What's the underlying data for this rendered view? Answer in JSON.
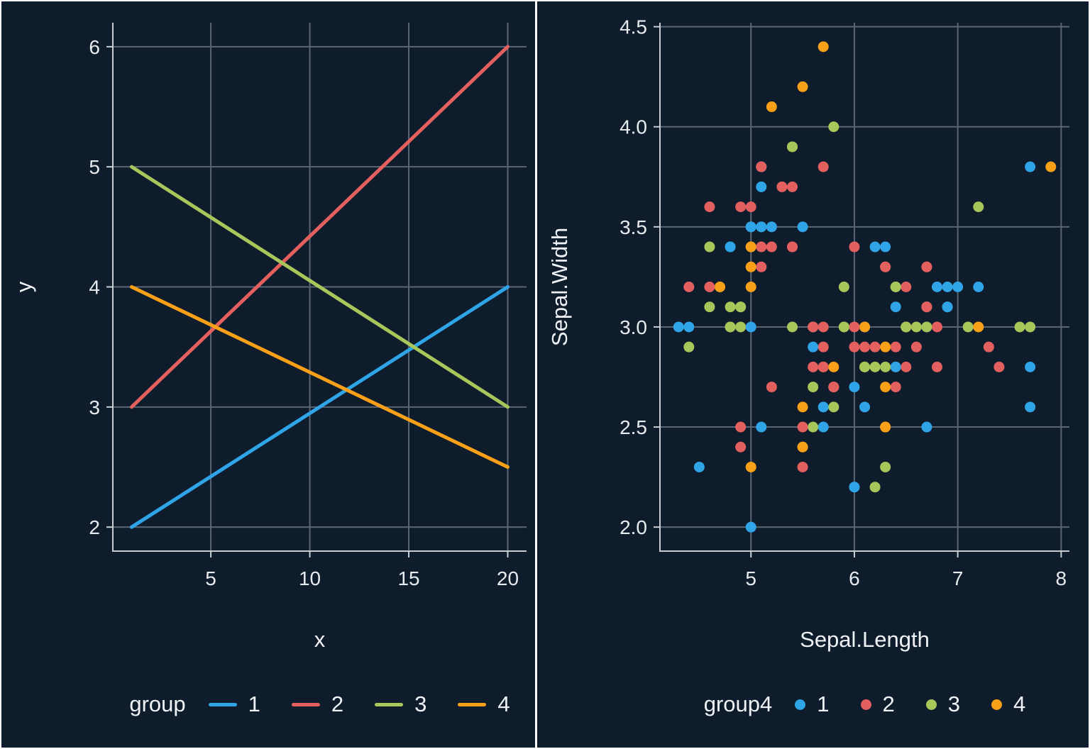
{
  "page": {
    "background": "#0F1C2C",
    "frame_border": "#FFFFFF",
    "grid_color": "#5A6573",
    "axis_color": "#C8CDD3",
    "text_color": "#F0F3F6",
    "tick_text_color": "#E8EBEE"
  },
  "palette": {
    "1": "#2FA4E7",
    "2": "#E4605F",
    "3": "#A8C65A",
    "4": "#F8A118"
  },
  "chart_data": [
    {
      "type": "line",
      "title": "",
      "xlabel": "x",
      "ylabel": "y",
      "xlim": [
        0.05,
        20.95
      ],
      "ylim": [
        1.8,
        6.2
      ],
      "xticks": [
        5,
        10,
        15,
        20
      ],
      "yticks": [
        2,
        3,
        4,
        5,
        6
      ],
      "xtick_labels": [
        "5",
        "10",
        "15",
        "20"
      ],
      "ytick_labels": [
        "2",
        "3",
        "4",
        "5",
        "6"
      ],
      "grid": true,
      "legend_title": "group",
      "legend_position": "bottom",
      "series": [
        {
          "name": "1",
          "color_key": "1",
          "x": [
            1,
            20
          ],
          "y": [
            2,
            4
          ]
        },
        {
          "name": "2",
          "color_key": "2",
          "x": [
            1,
            20
          ],
          "y": [
            3,
            6
          ]
        },
        {
          "name": "3",
          "color_key": "3",
          "x": [
            1,
            20
          ],
          "y": [
            5,
            3
          ]
        },
        {
          "name": "4",
          "color_key": "4",
          "x": [
            1,
            20
          ],
          "y": [
            4,
            2.5
          ]
        }
      ]
    },
    {
      "type": "scatter",
      "title": "",
      "xlabel": "Sepal.Length",
      "ylabel": "Sepal.Width",
      "xlim": [
        4.12,
        8.08
      ],
      "ylim": [
        1.88,
        4.52
      ],
      "xticks": [
        5,
        6,
        7,
        8
      ],
      "yticks": [
        2.0,
        2.5,
        3.0,
        3.5,
        4.0,
        4.5
      ],
      "xtick_labels": [
        "5",
        "6",
        "7",
        "8"
      ],
      "ytick_labels": [
        "2.0",
        "2.5",
        "3.0",
        "3.5",
        "4.0",
        "4.5"
      ],
      "grid": true,
      "legend_title": "group4",
      "legend_position": "bottom",
      "groups": [
        "1",
        "2",
        "3",
        "4"
      ],
      "points": [
        [
          5.1,
          3.5,
          1
        ],
        [
          4.9,
          3.0,
          3
        ],
        [
          4.7,
          3.2,
          4
        ],
        [
          4.6,
          3.1,
          3
        ],
        [
          5.0,
          3.6,
          2
        ],
        [
          5.4,
          3.9,
          3
        ],
        [
          4.6,
          3.4,
          3
        ],
        [
          5.0,
          3.4,
          4
        ],
        [
          4.4,
          2.9,
          3
        ],
        [
          4.9,
          3.1,
          3
        ],
        [
          5.4,
          3.7,
          2
        ],
        [
          4.8,
          3.4,
          1
        ],
        [
          4.8,
          3.0,
          3
        ],
        [
          4.3,
          3.0,
          1
        ],
        [
          5.8,
          4.0,
          3
        ],
        [
          5.7,
          4.4,
          4
        ],
        [
          5.4,
          3.9,
          3
        ],
        [
          5.1,
          3.5,
          1
        ],
        [
          5.7,
          3.8,
          2
        ],
        [
          5.1,
          3.8,
          2
        ],
        [
          5.4,
          3.4,
          2
        ],
        [
          5.1,
          3.7,
          1
        ],
        [
          4.6,
          3.6,
          2
        ],
        [
          5.1,
          3.3,
          2
        ],
        [
          4.8,
          3.4,
          1
        ],
        [
          5.0,
          3.0,
          1
        ],
        [
          5.0,
          3.4,
          4
        ],
        [
          5.2,
          3.5,
          1
        ],
        [
          5.2,
          3.4,
          2
        ],
        [
          4.7,
          3.2,
          4
        ],
        [
          4.8,
          3.1,
          3
        ],
        [
          5.4,
          3.4,
          2
        ],
        [
          5.2,
          4.1,
          4
        ],
        [
          5.5,
          4.2,
          4
        ],
        [
          4.9,
          3.1,
          3
        ],
        [
          5.0,
          3.2,
          4
        ],
        [
          5.5,
          3.5,
          1
        ],
        [
          4.9,
          3.6,
          2
        ],
        [
          4.4,
          3.0,
          1
        ],
        [
          5.1,
          3.4,
          2
        ],
        [
          5.0,
          3.5,
          1
        ],
        [
          4.5,
          2.3,
          1
        ],
        [
          4.4,
          3.2,
          2
        ],
        [
          5.0,
          3.5,
          1
        ],
        [
          5.1,
          3.8,
          1
        ],
        [
          4.8,
          3.0,
          3
        ],
        [
          5.1,
          3.8,
          2
        ],
        [
          4.6,
          3.2,
          2
        ],
        [
          5.3,
          3.7,
          2
        ],
        [
          5.0,
          3.3,
          4
        ],
        [
          7.0,
          3.2,
          1
        ],
        [
          6.4,
          3.2,
          3
        ],
        [
          6.9,
          3.1,
          1
        ],
        [
          5.5,
          2.3,
          2
        ],
        [
          6.5,
          2.8,
          2
        ],
        [
          5.7,
          2.8,
          4
        ],
        [
          6.3,
          3.3,
          2
        ],
        [
          4.9,
          2.4,
          2
        ],
        [
          6.6,
          2.9,
          2
        ],
        [
          5.2,
          2.7,
          2
        ],
        [
          5.0,
          2.0,
          1
        ],
        [
          5.9,
          3.0,
          3
        ],
        [
          6.0,
          2.2,
          1
        ],
        [
          6.1,
          2.9,
          2
        ],
        [
          5.6,
          2.9,
          1
        ],
        [
          6.7,
          3.1,
          1
        ],
        [
          5.6,
          3.0,
          3
        ],
        [
          5.8,
          2.7,
          1
        ],
        [
          6.2,
          2.2,
          3
        ],
        [
          5.6,
          2.5,
          3
        ],
        [
          5.9,
          3.2,
          3
        ],
        [
          6.1,
          2.8,
          4
        ],
        [
          6.3,
          2.5,
          4
        ],
        [
          6.1,
          2.8,
          3
        ],
        [
          6.4,
          2.9,
          2
        ],
        [
          6.6,
          3.0,
          3
        ],
        [
          6.8,
          2.8,
          2
        ],
        [
          6.7,
          3.0,
          1
        ],
        [
          6.0,
          2.9,
          2
        ],
        [
          5.7,
          2.6,
          1
        ],
        [
          5.5,
          2.4,
          3
        ],
        [
          5.5,
          2.4,
          4
        ],
        [
          5.8,
          2.7,
          2
        ],
        [
          6.0,
          2.7,
          1
        ],
        [
          5.4,
          3.0,
          3
        ],
        [
          6.0,
          3.4,
          2
        ],
        [
          6.7,
          3.1,
          2
        ],
        [
          6.3,
          2.3,
          3
        ],
        [
          5.6,
          3.0,
          2
        ],
        [
          5.5,
          2.5,
          2
        ],
        [
          5.5,
          2.6,
          4
        ],
        [
          6.1,
          3.0,
          1
        ],
        [
          5.8,
          2.6,
          3
        ],
        [
          5.0,
          2.3,
          4
        ],
        [
          5.6,
          2.7,
          3
        ],
        [
          5.7,
          3.0,
          2
        ],
        [
          5.7,
          2.9,
          2
        ],
        [
          6.2,
          2.9,
          2
        ],
        [
          5.1,
          2.5,
          1
        ],
        [
          5.7,
          2.8,
          2
        ],
        [
          6.3,
          3.3,
          2
        ],
        [
          5.8,
          2.7,
          2
        ],
        [
          7.1,
          3.0,
          3
        ],
        [
          6.3,
          2.9,
          4
        ],
        [
          6.5,
          3.0,
          3
        ],
        [
          7.6,
          3.0,
          3
        ],
        [
          4.9,
          2.5,
          2
        ],
        [
          7.3,
          2.9,
          2
        ],
        [
          6.7,
          2.5,
          1
        ],
        [
          7.2,
          3.6,
          3
        ],
        [
          6.5,
          3.2,
          2
        ],
        [
          6.4,
          2.7,
          2
        ],
        [
          6.8,
          3.0,
          2
        ],
        [
          5.7,
          2.5,
          1
        ],
        [
          5.8,
          2.8,
          4
        ],
        [
          6.4,
          3.2,
          3
        ],
        [
          6.5,
          3.0,
          4
        ],
        [
          7.7,
          3.8,
          1
        ],
        [
          7.7,
          2.6,
          1
        ],
        [
          6.0,
          2.2,
          1
        ],
        [
          6.9,
          3.2,
          1
        ],
        [
          5.6,
          2.8,
          2
        ],
        [
          7.7,
          2.8,
          1
        ],
        [
          6.3,
          2.7,
          4
        ],
        [
          6.7,
          3.3,
          2
        ],
        [
          7.2,
          3.2,
          1
        ],
        [
          6.2,
          2.8,
          3
        ],
        [
          6.1,
          3.0,
          4
        ],
        [
          6.4,
          2.8,
          2
        ],
        [
          7.2,
          3.0,
          4
        ],
        [
          7.4,
          2.8,
          2
        ],
        [
          7.9,
          3.8,
          4
        ],
        [
          6.4,
          2.8,
          1
        ],
        [
          6.3,
          2.8,
          3
        ],
        [
          6.1,
          2.6,
          1
        ],
        [
          7.7,
          3.0,
          3
        ],
        [
          6.3,
          3.4,
          1
        ],
        [
          6.4,
          3.1,
          1
        ],
        [
          6.0,
          3.0,
          2
        ],
        [
          6.9,
          3.1,
          1
        ],
        [
          6.7,
          3.1,
          2
        ],
        [
          6.9,
          3.1,
          1
        ],
        [
          5.8,
          2.7,
          2
        ],
        [
          6.8,
          3.2,
          1
        ],
        [
          6.7,
          3.3,
          2
        ],
        [
          6.7,
          3.0,
          3
        ],
        [
          6.3,
          2.5,
          4
        ],
        [
          6.5,
          3.0,
          3
        ],
        [
          6.2,
          3.4,
          1
        ],
        [
          5.9,
          3.0,
          3
        ]
      ]
    }
  ]
}
